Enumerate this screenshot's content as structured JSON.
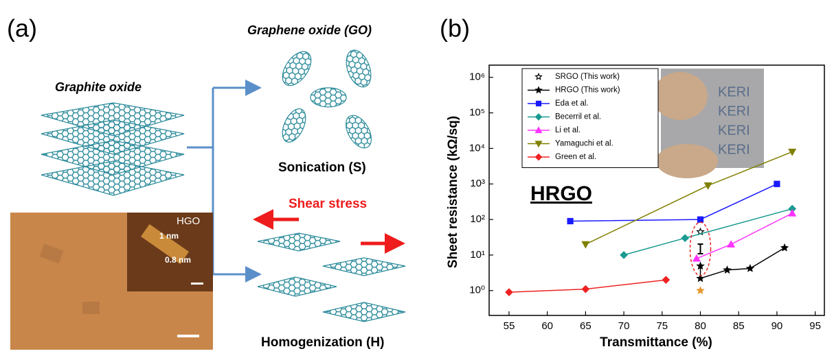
{
  "panel_a": {
    "label": "(a)",
    "graphite": "Graphite oxide",
    "graphene": "Graphene oxide (GO)",
    "sonication": "Sonication (S)",
    "shear": "Shear stress",
    "homogenization": "Homogenization (H)",
    "inset_title": "HGO",
    "inset_h1": "1 nm",
    "inset_h2": "0.8 nm"
  },
  "chart_data": {
    "type": "scatter",
    "panel_label": "(b)",
    "annotation": "HRGO",
    "photo_texts": [
      "KERI",
      "KERI",
      "KERI",
      "KERI"
    ],
    "xlabel": "Transmittance (%)",
    "ylabel": "Sheet resistance (kΩ/sq)",
    "xlim": [
      52.4,
      96.2
    ],
    "xticks": [
      55,
      60,
      65,
      70,
      75,
      80,
      85,
      90,
      95
    ],
    "ylim": [
      0.2,
      2200000
    ],
    "log_y": true,
    "yticks": [
      {
        "value": 1,
        "label": "10⁰"
      },
      {
        "value": 10,
        "label": "10¹"
      },
      {
        "value": 100,
        "label": "10²"
      },
      {
        "value": 1000,
        "label": "10³"
      },
      {
        "value": 10000,
        "label": "10⁴"
      },
      {
        "value": 100000,
        "label": "10⁵"
      },
      {
        "value": 1000000,
        "label": "10⁶"
      }
    ],
    "series": [
      {
        "name": "SRGO (This work)",
        "color": "#000000",
        "marker": "star-open",
        "line": false,
        "x": [
          80
        ],
        "values": [
          45
        ]
      },
      {
        "name": "HRGO (This work)",
        "color": "#000000",
        "marker": "star",
        "line": true,
        "x": [
          80,
          80,
          83.5,
          86.5,
          91
        ],
        "values": [
          4.9,
          2.2,
          3.8,
          4.2,
          16
        ]
      },
      {
        "name": "Eda et al.",
        "color": "#1a1aff",
        "marker": "square",
        "line": true,
        "x": [
          63,
          80,
          90
        ],
        "values": [
          90,
          100,
          1000
        ]
      },
      {
        "name": "Becerril et al.",
        "color": "#1a9a90",
        "marker": "diamond",
        "line": true,
        "x": [
          70,
          78,
          92
        ],
        "values": [
          10,
          30,
          200
        ]
      },
      {
        "name": "Li et al.",
        "color": "#ff33ff",
        "marker": "triangle",
        "line": true,
        "x": [
          79.5,
          84,
          92
        ],
        "values": [
          8,
          20,
          150
        ]
      },
      {
        "name": "Yamaguchi et al.",
        "color": "#808000",
        "marker": "triangle-down",
        "line": true,
        "x": [
          65,
          81,
          92
        ],
        "values": [
          20,
          900,
          8000
        ]
      },
      {
        "name": "Green et al.",
        "color": "#ee2222",
        "marker": "diamond",
        "line": true,
        "x": [
          55,
          65,
          75.5
        ],
        "values": [
          0.9,
          1.1,
          2
        ]
      }
    ],
    "extra_points": [
      {
        "x": 80,
        "y": 1,
        "color": "#e8962e"
      }
    ]
  }
}
